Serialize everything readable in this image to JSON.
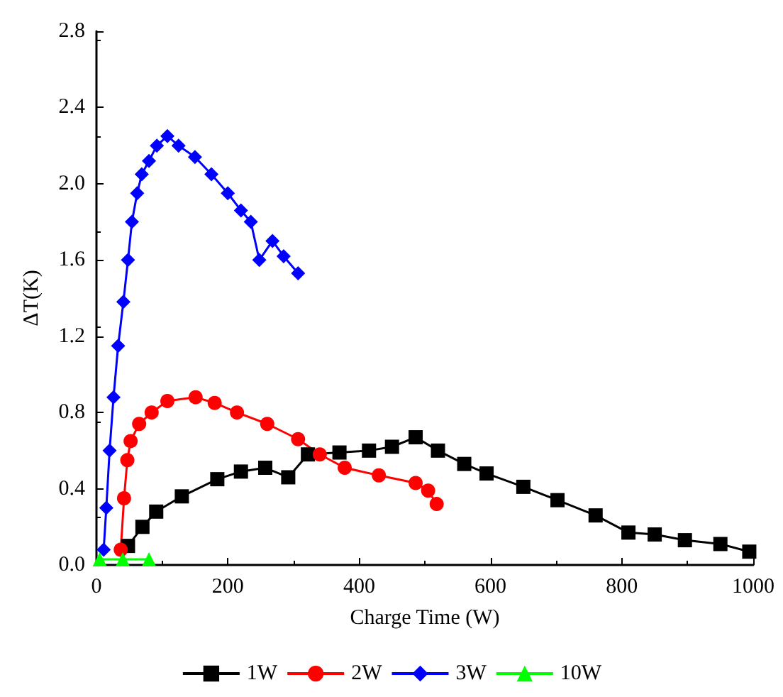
{
  "chart_data": {
    "type": "line",
    "xlabel": "Charge Time (W)",
    "ylabel": "ΔT(K)",
    "xlim": [
      0,
      1000
    ],
    "xticks": [
      0,
      200,
      400,
      600,
      800,
      1000
    ],
    "ylim": [
      0,
      2.8
    ],
    "yticks": [
      {
        "value": 0,
        "label": "0.0"
      },
      {
        "value": 0.4,
        "label": "0.4"
      },
      {
        "value": 0.8,
        "label": "0.8"
      },
      {
        "value": 1.2,
        "label": "1.2"
      },
      {
        "value": 1.6,
        "label": "1.6"
      },
      {
        "value": 2.0,
        "label": "2.0"
      },
      {
        "value": 2.4,
        "label": "2.4"
      },
      {
        "value": 2.8,
        "label": "2.8"
      }
    ],
    "grid": false,
    "legend": "bottom",
    "series": [
      {
        "name": "1W",
        "color": "#000000",
        "marker": "square",
        "x": [
          48,
          70,
          91,
          130,
          184,
          220,
          257,
          292,
          322,
          370,
          415,
          450,
          486,
          520,
          560,
          594,
          650,
          702,
          760,
          810,
          850,
          896,
          950,
          994
        ],
        "values": [
          0.1,
          0.2,
          0.28,
          0.36,
          0.45,
          0.49,
          0.51,
          0.46,
          0.58,
          0.59,
          0.6,
          0.62,
          0.67,
          0.6,
          0.53,
          0.48,
          0.41,
          0.34,
          0.26,
          0.17,
          0.16,
          0.13,
          0.11,
          0.07
        ]
      },
      {
        "name": "2W",
        "color": "#ff0000",
        "marker": "circle",
        "x": [
          37,
          42,
          47,
          52,
          65,
          84,
          108,
          151,
          180,
          214,
          260,
          307,
          340,
          378,
          430,
          486,
          505,
          518
        ],
        "values": [
          0.08,
          0.35,
          0.55,
          0.65,
          0.74,
          0.8,
          0.86,
          0.88,
          0.85,
          0.8,
          0.74,
          0.66,
          0.58,
          0.51,
          0.47,
          0.43,
          0.39,
          0.32
        ]
      },
      {
        "name": "3W",
        "color": "#0000ff",
        "marker": "diamond",
        "x": [
          11,
          15,
          20,
          26,
          33,
          41,
          48,
          54,
          62,
          69,
          80,
          92,
          108,
          125,
          150,
          175,
          200,
          220,
          235,
          248,
          268,
          285,
          307
        ],
        "values": [
          0.08,
          0.3,
          0.6,
          0.88,
          1.15,
          1.38,
          1.6,
          1.8,
          1.95,
          2.05,
          2.12,
          2.2,
          2.25,
          2.2,
          2.14,
          2.05,
          1.95,
          1.86,
          1.8,
          1.6,
          1.7,
          1.62,
          1.53
        ]
      },
      {
        "name": "10W",
        "color": "#00ff00",
        "marker": "triangle",
        "x": [
          5,
          40,
          80
        ],
        "values": [
          0.03,
          0.03,
          0.03
        ]
      }
    ]
  }
}
